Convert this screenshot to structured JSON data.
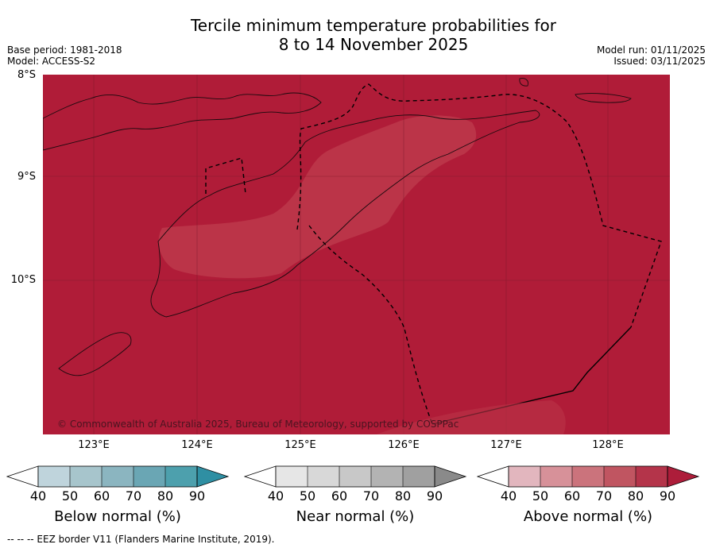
{
  "title": {
    "line1": "Tercile minimum temperature probabilities for",
    "line2": "8 to 14 November 2025"
  },
  "meta": {
    "base_period": "Base period: 1981-2018",
    "model": "Model: ACCESS-S2",
    "model_run": "Model run: 01/11/2025",
    "issued": "Issued: 03/11/2025"
  },
  "axes": {
    "lat_labels": [
      "8°S",
      "9°S",
      "10°S"
    ],
    "lon_labels": [
      "123°E",
      "124°E",
      "125°E",
      "126°E",
      "127°E",
      "128°E"
    ]
  },
  "copyright": "© Commonwealth of Australia 2025, Bureau of Meteorology, supported by COSPPac",
  "colorbars": [
    {
      "name": "below",
      "label": "Below normal (%)",
      "ticks": [
        "40",
        "50",
        "60",
        "70",
        "80",
        "90"
      ],
      "colors": [
        "#bfd4dc",
        "#a7c5cc",
        "#8bb5c0",
        "#6aa6b4",
        "#4da0ad",
        "#2f8fa3"
      ]
    },
    {
      "name": "near",
      "label": "Near normal (%)",
      "ticks": [
        "40",
        "50",
        "60",
        "70",
        "80",
        "90"
      ],
      "colors": [
        "#e6e6e6",
        "#d8d8d8",
        "#c8c8c8",
        "#b3b3b3",
        "#a0a0a0",
        "#8a8a8a"
      ]
    },
    {
      "name": "above",
      "label": "Above normal (%)",
      "ticks": [
        "40",
        "50",
        "60",
        "70",
        "80",
        "90"
      ],
      "colors": [
        "#e2b6be",
        "#d79199",
        "#cb737c",
        "#c05561",
        "#b4344a",
        "#ad1d3a"
      ]
    }
  ],
  "map_colors": {
    "above_90": "#b01c38",
    "above_80": "#bb3448"
  },
  "footer": "--  --  -- EEZ border V11 (Flanders Marine Institute, 2019)."
}
